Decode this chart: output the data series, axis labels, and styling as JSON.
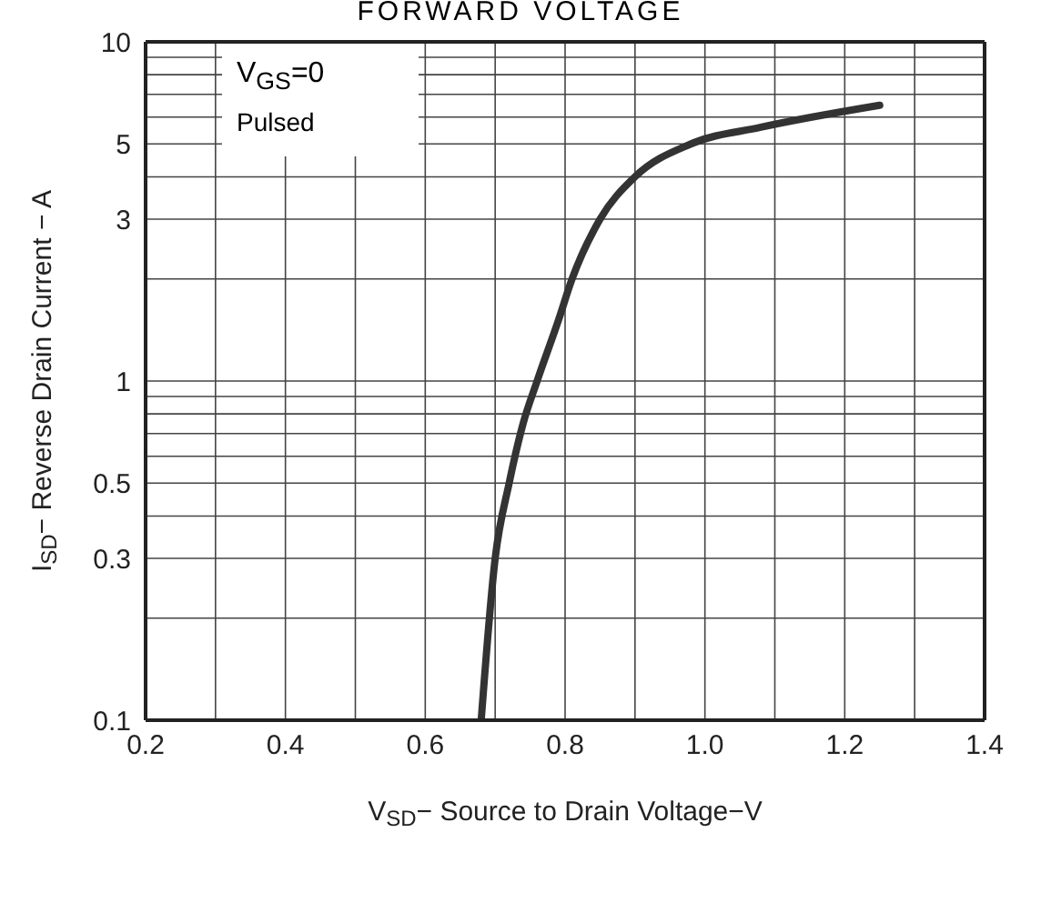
{
  "chart_data": {
    "type": "line",
    "title": "FORWARD VOLTAGE",
    "xlabel": "V$_{SD}$− Source to Drain Voltage−V",
    "ylabel": "I$_{SD}$− Reverse Drain Current − A",
    "annotations": [
      "V$_{GS}$=0",
      "Pulsed"
    ],
    "series": [
      {
        "color": "#333333",
        "x": [
          0.68,
          0.7,
          0.72,
          0.74,
          0.76,
          0.79,
          0.81,
          0.85,
          0.9,
          0.98,
          1.08,
          1.25
        ],
        "values": [
          0.1,
          0.3,
          0.5,
          0.75,
          1,
          1.5,
          2,
          3,
          4,
          5,
          5.6,
          6.5
        ]
      }
    ],
    "log": "y",
    "grid": true,
    "marker": "none",
    "line_style": "solid",
    "legend": false,
    "xlim": [
      0.2,
      1.4
    ],
    "xticks": [
      0.2,
      {
        "value": 0.3,
        "label": null
      },
      0.4,
      {
        "value": 0.5,
        "label": null
      },
      0.6,
      {
        "value": 0.7,
        "label": null
      },
      0.8,
      {
        "value": 0.9,
        "label": null
      },
      {
        "value": 1,
        "label": "1.0"
      },
      {
        "value": 1.1,
        "label": null
      },
      1.2,
      {
        "value": 1.3,
        "label": null
      },
      1.4
    ],
    "ylim": [
      0.1,
      10
    ],
    "yticks": [
      0.1,
      {
        "value": 0.2,
        "label": null
      },
      0.3,
      {
        "value": 0.4,
        "label": null
      },
      0.5,
      {
        "value": 0.6,
        "label": null
      },
      {
        "value": 0.7,
        "label": null
      },
      {
        "value": 0.8,
        "label": null
      },
      {
        "value": 0.9,
        "label": null
      },
      1,
      {
        "value": 2,
        "label": null
      },
      3,
      {
        "value": 4,
        "label": null
      },
      5,
      {
        "value": 6,
        "label": null
      },
      {
        "value": 7,
        "label": null
      },
      {
        "value": 8,
        "label": null
      },
      {
        "value": 9,
        "label": null
      },
      10
    ]
  }
}
